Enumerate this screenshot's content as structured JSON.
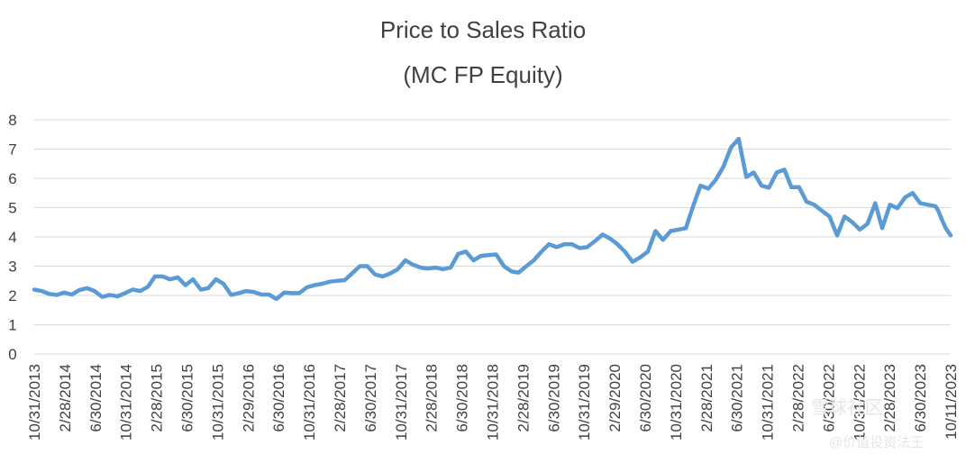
{
  "chart_data": {
    "type": "line",
    "title": "Price to Sales Ratio",
    "subtitle": "(MC FP Equity)",
    "ylim": [
      0,
      8
    ],
    "yticks": [
      0,
      1,
      2,
      3,
      4,
      5,
      6,
      7,
      8
    ],
    "x_tick_labels": [
      "10/31/2013",
      "2/28/2014",
      "6/30/2014",
      "10/31/2014",
      "2/28/2015",
      "6/30/2015",
      "10/31/2015",
      "2/29/2016",
      "6/30/2016",
      "10/31/2016",
      "2/28/2017",
      "6/30/2017",
      "10/31/2017",
      "2/28/2018",
      "6/30/2018",
      "10/31/2018",
      "2/28/2019",
      "6/30/2019",
      "10/31/2019",
      "2/29/2020",
      "6/30/2020",
      "10/31/2020",
      "2/28/2021",
      "6/30/2021",
      "10/31/2021",
      "2/28/2022",
      "6/30/2022",
      "10/31/2022",
      "2/28/2023",
      "6/30/2023",
      "10/11/2023"
    ],
    "grid": "horizontal",
    "legend": "none",
    "series": [
      {
        "color": "#5b9bd5",
        "points": [
          [
            "2013-10-31",
            2.2
          ],
          [
            "2013-11-30",
            2.15
          ],
          [
            "2013-12-31",
            2.05
          ],
          [
            "2014-01-31",
            2.02
          ],
          [
            "2014-02-28",
            2.1
          ],
          [
            "2014-03-31",
            2.03
          ],
          [
            "2014-04-30",
            2.18
          ],
          [
            "2014-05-31",
            2.25
          ],
          [
            "2014-06-30",
            2.15
          ],
          [
            "2014-07-31",
            1.95
          ],
          [
            "2014-08-31",
            2.02
          ],
          [
            "2014-09-30",
            1.97
          ],
          [
            "2014-10-31",
            2.08
          ],
          [
            "2014-11-30",
            2.2
          ],
          [
            "2014-12-31",
            2.15
          ],
          [
            "2015-01-31",
            2.3
          ],
          [
            "2015-02-28",
            2.65
          ],
          [
            "2015-03-31",
            2.65
          ],
          [
            "2015-04-30",
            2.55
          ],
          [
            "2015-05-31",
            2.62
          ],
          [
            "2015-06-30",
            2.35
          ],
          [
            "2015-07-31",
            2.55
          ],
          [
            "2015-08-31",
            2.2
          ],
          [
            "2015-09-30",
            2.25
          ],
          [
            "2015-10-31",
            2.55
          ],
          [
            "2015-11-30",
            2.4
          ],
          [
            "2015-12-31",
            2.02
          ],
          [
            "2016-01-31",
            2.08
          ],
          [
            "2016-02-29",
            2.15
          ],
          [
            "2016-03-31",
            2.12
          ],
          [
            "2016-04-30",
            2.03
          ],
          [
            "2016-05-31",
            2.03
          ],
          [
            "2016-06-30",
            1.88
          ],
          [
            "2016-07-31",
            2.1
          ],
          [
            "2016-08-31",
            2.08
          ],
          [
            "2016-09-30",
            2.08
          ],
          [
            "2016-10-31",
            2.28
          ],
          [
            "2016-11-30",
            2.35
          ],
          [
            "2016-12-31",
            2.4
          ],
          [
            "2017-01-31",
            2.47
          ],
          [
            "2017-02-28",
            2.5
          ],
          [
            "2017-03-31",
            2.52
          ],
          [
            "2017-04-30",
            2.75
          ],
          [
            "2017-05-31",
            3.0
          ],
          [
            "2017-06-30",
            3.0
          ],
          [
            "2017-07-31",
            2.72
          ],
          [
            "2017-08-31",
            2.65
          ],
          [
            "2017-09-30",
            2.75
          ],
          [
            "2017-10-31",
            2.9
          ],
          [
            "2017-11-30",
            3.2
          ],
          [
            "2017-12-31",
            3.05
          ],
          [
            "2018-01-31",
            2.95
          ],
          [
            "2018-02-28",
            2.92
          ],
          [
            "2018-03-31",
            2.95
          ],
          [
            "2018-04-30",
            2.9
          ],
          [
            "2018-05-31",
            2.95
          ],
          [
            "2018-06-30",
            3.42
          ],
          [
            "2018-07-31",
            3.5
          ],
          [
            "2018-08-31",
            3.2
          ],
          [
            "2018-09-30",
            3.35
          ],
          [
            "2018-10-31",
            3.38
          ],
          [
            "2018-11-30",
            3.4
          ],
          [
            "2018-12-31",
            3.0
          ],
          [
            "2019-01-31",
            2.82
          ],
          [
            "2019-02-28",
            2.78
          ],
          [
            "2019-03-31",
            3.0
          ],
          [
            "2019-04-30",
            3.2
          ],
          [
            "2019-05-31",
            3.5
          ],
          [
            "2019-06-30",
            3.75
          ],
          [
            "2019-07-31",
            3.65
          ],
          [
            "2019-08-31",
            3.75
          ],
          [
            "2019-09-30",
            3.75
          ],
          [
            "2019-10-31",
            3.62
          ],
          [
            "2019-11-30",
            3.65
          ],
          [
            "2019-12-31",
            3.85
          ],
          [
            "2020-01-31",
            4.08
          ],
          [
            "2020-02-29",
            3.95
          ],
          [
            "2020-03-31",
            3.75
          ],
          [
            "2020-04-30",
            3.5
          ],
          [
            "2020-05-31",
            3.15
          ],
          [
            "2020-06-30",
            3.3
          ],
          [
            "2020-07-31",
            3.5
          ],
          [
            "2020-08-31",
            4.2
          ],
          [
            "2020-09-30",
            3.9
          ],
          [
            "2020-10-31",
            4.2
          ],
          [
            "2020-11-30",
            4.25
          ],
          [
            "2020-12-31",
            4.3
          ],
          [
            "2021-01-31",
            5.1
          ],
          [
            "2021-02-28",
            5.75
          ],
          [
            "2021-03-31",
            5.65
          ],
          [
            "2021-04-30",
            5.95
          ],
          [
            "2021-05-31",
            6.4
          ],
          [
            "2021-06-30",
            7.05
          ],
          [
            "2021-07-31",
            7.35
          ],
          [
            "2021-08-31",
            6.05
          ],
          [
            "2021-09-30",
            6.2
          ],
          [
            "2021-10-31",
            5.75
          ],
          [
            "2021-11-30",
            5.68
          ],
          [
            "2021-12-31",
            6.2
          ],
          [
            "2022-01-31",
            6.3
          ],
          [
            "2022-02-28",
            5.7
          ],
          [
            "2022-03-31",
            5.7
          ],
          [
            "2022-04-30",
            5.2
          ],
          [
            "2022-05-31",
            5.1
          ],
          [
            "2022-06-30",
            4.9
          ],
          [
            "2022-07-31",
            4.7
          ],
          [
            "2022-08-31",
            4.05
          ],
          [
            "2022-09-30",
            4.7
          ],
          [
            "2022-10-31",
            4.5
          ],
          [
            "2022-11-30",
            4.25
          ],
          [
            "2022-12-31",
            4.45
          ],
          [
            "2023-01-31",
            5.15
          ],
          [
            "2023-02-28",
            4.3
          ],
          [
            "2023-03-31",
            5.1
          ],
          [
            "2023-04-30",
            4.98
          ],
          [
            "2023-05-31",
            5.35
          ],
          [
            "2023-06-30",
            5.5
          ],
          [
            "2023-07-31",
            5.15
          ],
          [
            "2023-08-31",
            5.1
          ],
          [
            "2023-09-30",
            5.05
          ],
          [
            "2023-10-11",
            4.9
          ],
          [
            "2023-10-25",
            4.6
          ],
          [
            "2023-11-10",
            4.3
          ],
          [
            "2023-11-30",
            4.05
          ]
        ]
      }
    ]
  },
  "watermark": {
    "line1": "雪球社区",
    "line2": "@价值投资法王"
  }
}
